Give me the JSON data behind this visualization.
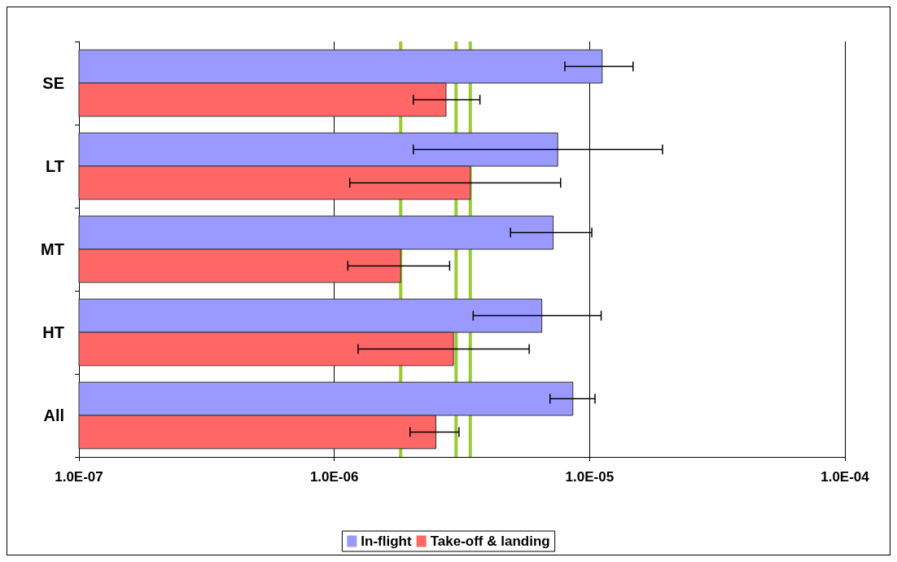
{
  "chart_data": {
    "type": "bar",
    "orientation": "horizontal",
    "categories": [
      "SE",
      "LT",
      "MT",
      "HT",
      "All"
    ],
    "series": [
      {
        "name": "In-flight",
        "color": "#9999ff",
        "values": [
          1.12e-05,
          7.5e-06,
          7.2e-06,
          6.5e-06,
          8.6e-06
        ],
        "errors": [
          [
            8e-06,
            1.48e-05
          ],
          [
            2.04e-06,
            1.93e-05
          ],
          [
            4.9e-06,
            1.02e-05
          ],
          [
            3.5e-06,
            1.11e-05
          ],
          [
            7e-06,
            1.05e-05
          ]
        ]
      },
      {
        "name": "Take-off & landing",
        "color": "#ff6666",
        "values": [
          2.74e-06,
          3.41e-06,
          1.82e-06,
          2.93e-06,
          2.5e-06
        ],
        "errors": [
          [
            2.04e-06,
            3.72e-06
          ],
          [
            1.15e-06,
            7.7e-06
          ],
          [
            1.13e-06,
            2.83e-06
          ],
          [
            1.24e-06,
            5.8e-06
          ],
          [
            1.98e-06,
            3.08e-06
          ]
        ]
      }
    ],
    "log": "x",
    "xlim": [
      1e-07,
      0.0001
    ],
    "xticks": [
      {
        "value": 1e-07,
        "label": "1.0E-07"
      },
      {
        "value": 1e-06,
        "label": "1.0E-06"
      },
      {
        "value": 1e-05,
        "label": "1.0E-05"
      },
      {
        "value": 0.0001,
        "label": "1.0E-04"
      }
    ],
    "grid": "x",
    "legend": "bottom",
    "ref_lines": [
      {
        "axis": "x",
        "value": 1.82e-06,
        "color": "#99cc33"
      },
      {
        "axis": "x",
        "value": 3e-06,
        "color": "#99cc33"
      },
      {
        "axis": "x",
        "value": 3.41e-06,
        "color": "#99cc33"
      }
    ]
  }
}
